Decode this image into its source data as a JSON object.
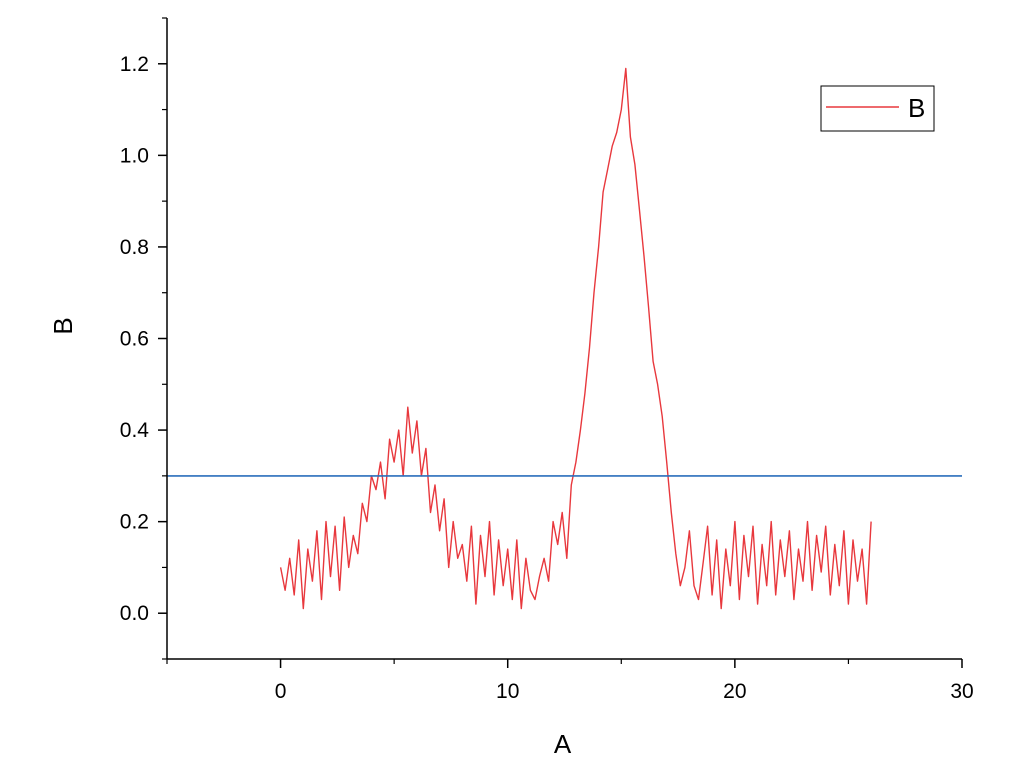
{
  "chart_data": {
    "type": "line",
    "title": "",
    "xlabel": "A",
    "ylabel": "B",
    "xlim": [
      -5,
      30
    ],
    "ylim": [
      -0.1,
      1.3
    ],
    "xticks": [
      0,
      10,
      20,
      30
    ],
    "yticks": [
      0.0,
      0.2,
      0.4,
      0.6,
      0.8,
      1.0,
      1.2
    ],
    "xtick_labels": [
      "0",
      "10",
      "20",
      "30"
    ],
    "ytick_labels": [
      "0.0",
      "0.2",
      "0.4",
      "0.6",
      "0.8",
      "1.0",
      "1.2"
    ],
    "grid": false,
    "legend": {
      "position": "top-right",
      "entries": [
        {
          "label": "B",
          "color": "#e8383d"
        }
      ]
    },
    "series": [
      {
        "name": "B",
        "color": "#e8383d",
        "x": [
          0.0,
          0.2,
          0.4,
          0.6,
          0.8,
          1.0,
          1.2,
          1.4,
          1.6,
          1.8,
          2.0,
          2.2,
          2.4,
          2.6,
          2.8,
          3.0,
          3.2,
          3.4,
          3.6,
          3.8,
          4.0,
          4.2,
          4.4,
          4.6,
          4.8,
          5.0,
          5.2,
          5.4,
          5.6,
          5.8,
          6.0,
          6.2,
          6.4,
          6.6,
          6.8,
          7.0,
          7.2,
          7.4,
          7.6,
          7.8,
          8.0,
          8.2,
          8.4,
          8.6,
          8.8,
          9.0,
          9.2,
          9.4,
          9.6,
          9.8,
          10.0,
          10.2,
          10.4,
          10.6,
          10.8,
          11.0,
          11.2,
          11.4,
          11.6,
          11.8,
          12.0,
          12.2,
          12.4,
          12.6,
          12.8,
          13.0,
          13.2,
          13.4,
          13.6,
          13.8,
          14.0,
          14.2,
          14.4,
          14.6,
          14.8,
          15.0,
          15.2,
          15.4,
          15.6,
          15.8,
          16.0,
          16.2,
          16.4,
          16.6,
          16.8,
          17.0,
          17.2,
          17.4,
          17.6,
          17.8,
          18.0,
          18.2,
          18.4,
          18.6,
          18.8,
          19.0,
          19.2,
          19.4,
          19.6,
          19.8,
          20.0,
          20.2,
          20.4,
          20.6,
          20.8,
          21.0,
          21.2,
          21.4,
          21.6,
          21.8,
          22.0,
          22.2,
          22.4,
          22.6,
          22.8,
          23.0,
          23.2,
          23.4,
          23.6,
          23.8,
          24.0,
          24.2,
          24.4,
          24.6,
          24.8,
          25.0,
          25.2,
          25.4,
          25.6,
          25.8,
          26.0
        ],
        "y": [
          0.1,
          0.05,
          0.12,
          0.04,
          0.16,
          0.01,
          0.14,
          0.07,
          0.18,
          0.03,
          0.2,
          0.08,
          0.19,
          0.05,
          0.21,
          0.1,
          0.17,
          0.13,
          0.24,
          0.2,
          0.3,
          0.27,
          0.33,
          0.25,
          0.38,
          0.33,
          0.4,
          0.3,
          0.45,
          0.35,
          0.42,
          0.3,
          0.36,
          0.22,
          0.28,
          0.18,
          0.25,
          0.1,
          0.2,
          0.12,
          0.15,
          0.07,
          0.19,
          0.02,
          0.17,
          0.08,
          0.2,
          0.04,
          0.16,
          0.06,
          0.14,
          0.03,
          0.16,
          0.01,
          0.12,
          0.05,
          0.03,
          0.08,
          0.12,
          0.07,
          0.2,
          0.15,
          0.22,
          0.12,
          0.28,
          0.33,
          0.4,
          0.48,
          0.58,
          0.7,
          0.8,
          0.92,
          0.97,
          1.02,
          1.05,
          1.1,
          1.19,
          1.04,
          0.98,
          0.88,
          0.78,
          0.67,
          0.55,
          0.5,
          0.43,
          0.33,
          0.22,
          0.13,
          0.06,
          0.1,
          0.18,
          0.06,
          0.03,
          0.11,
          0.19,
          0.04,
          0.16,
          0.01,
          0.14,
          0.06,
          0.2,
          0.03,
          0.17,
          0.08,
          0.19,
          0.02,
          0.15,
          0.06,
          0.2,
          0.04,
          0.16,
          0.08,
          0.18,
          0.03,
          0.14,
          0.07,
          0.2,
          0.05,
          0.17,
          0.09,
          0.19,
          0.04,
          0.15,
          0.06,
          0.18,
          0.02,
          0.16,
          0.07,
          0.14,
          0.02,
          0.2
        ]
      },
      {
        "name": "",
        "color": "#2a6ebb",
        "x": [
          -5,
          30
        ],
        "y": [
          0.3,
          0.3
        ]
      }
    ]
  }
}
